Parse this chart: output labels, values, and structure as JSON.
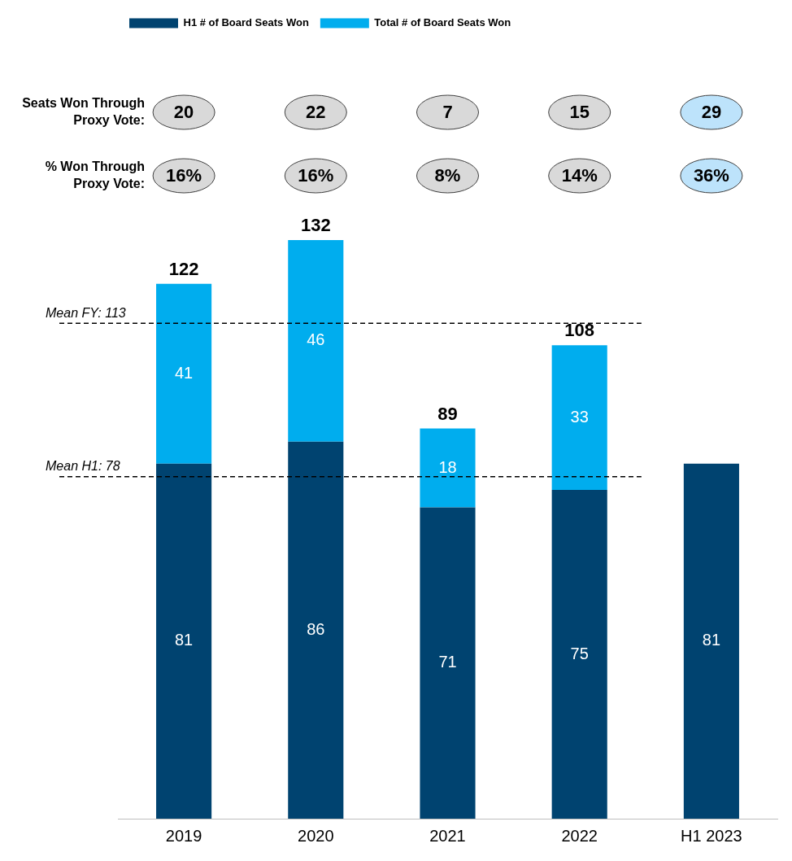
{
  "chart_data": {
    "type": "bar",
    "stacked": true,
    "categories": [
      "2019",
      "2020",
      "2021",
      "2022",
      "H1 2023"
    ],
    "series": [
      {
        "name": "H1 # of Board Seats Won",
        "color": "#004370",
        "values": [
          81,
          86,
          71,
          75,
          81
        ]
      },
      {
        "name": "Total # of Board Seats Won",
        "color": "#00adee",
        "values": [
          41,
          46,
          18,
          33,
          null
        ]
      }
    ],
    "data_labels": true,
    "totals": [
      "122",
      "132",
      "89",
      "108",
      null
    ],
    "ref_lines": [
      {
        "axis": "y",
        "value": 113,
        "label": "Mean FY: 113",
        "line_style": "dashed"
      },
      {
        "axis": "y",
        "value": 78,
        "label": "Mean H1: 78",
        "line_style": "dashed"
      }
    ],
    "annotations": [
      "Seats Won Through Proxy Vote:",
      "20",
      "22",
      "7",
      "15",
      "29",
      "% Won Through Proxy Vote:",
      "16%",
      "16%",
      "8%",
      "14%",
      "36%"
    ],
    "legend": "top left",
    "grid": false
  }
}
